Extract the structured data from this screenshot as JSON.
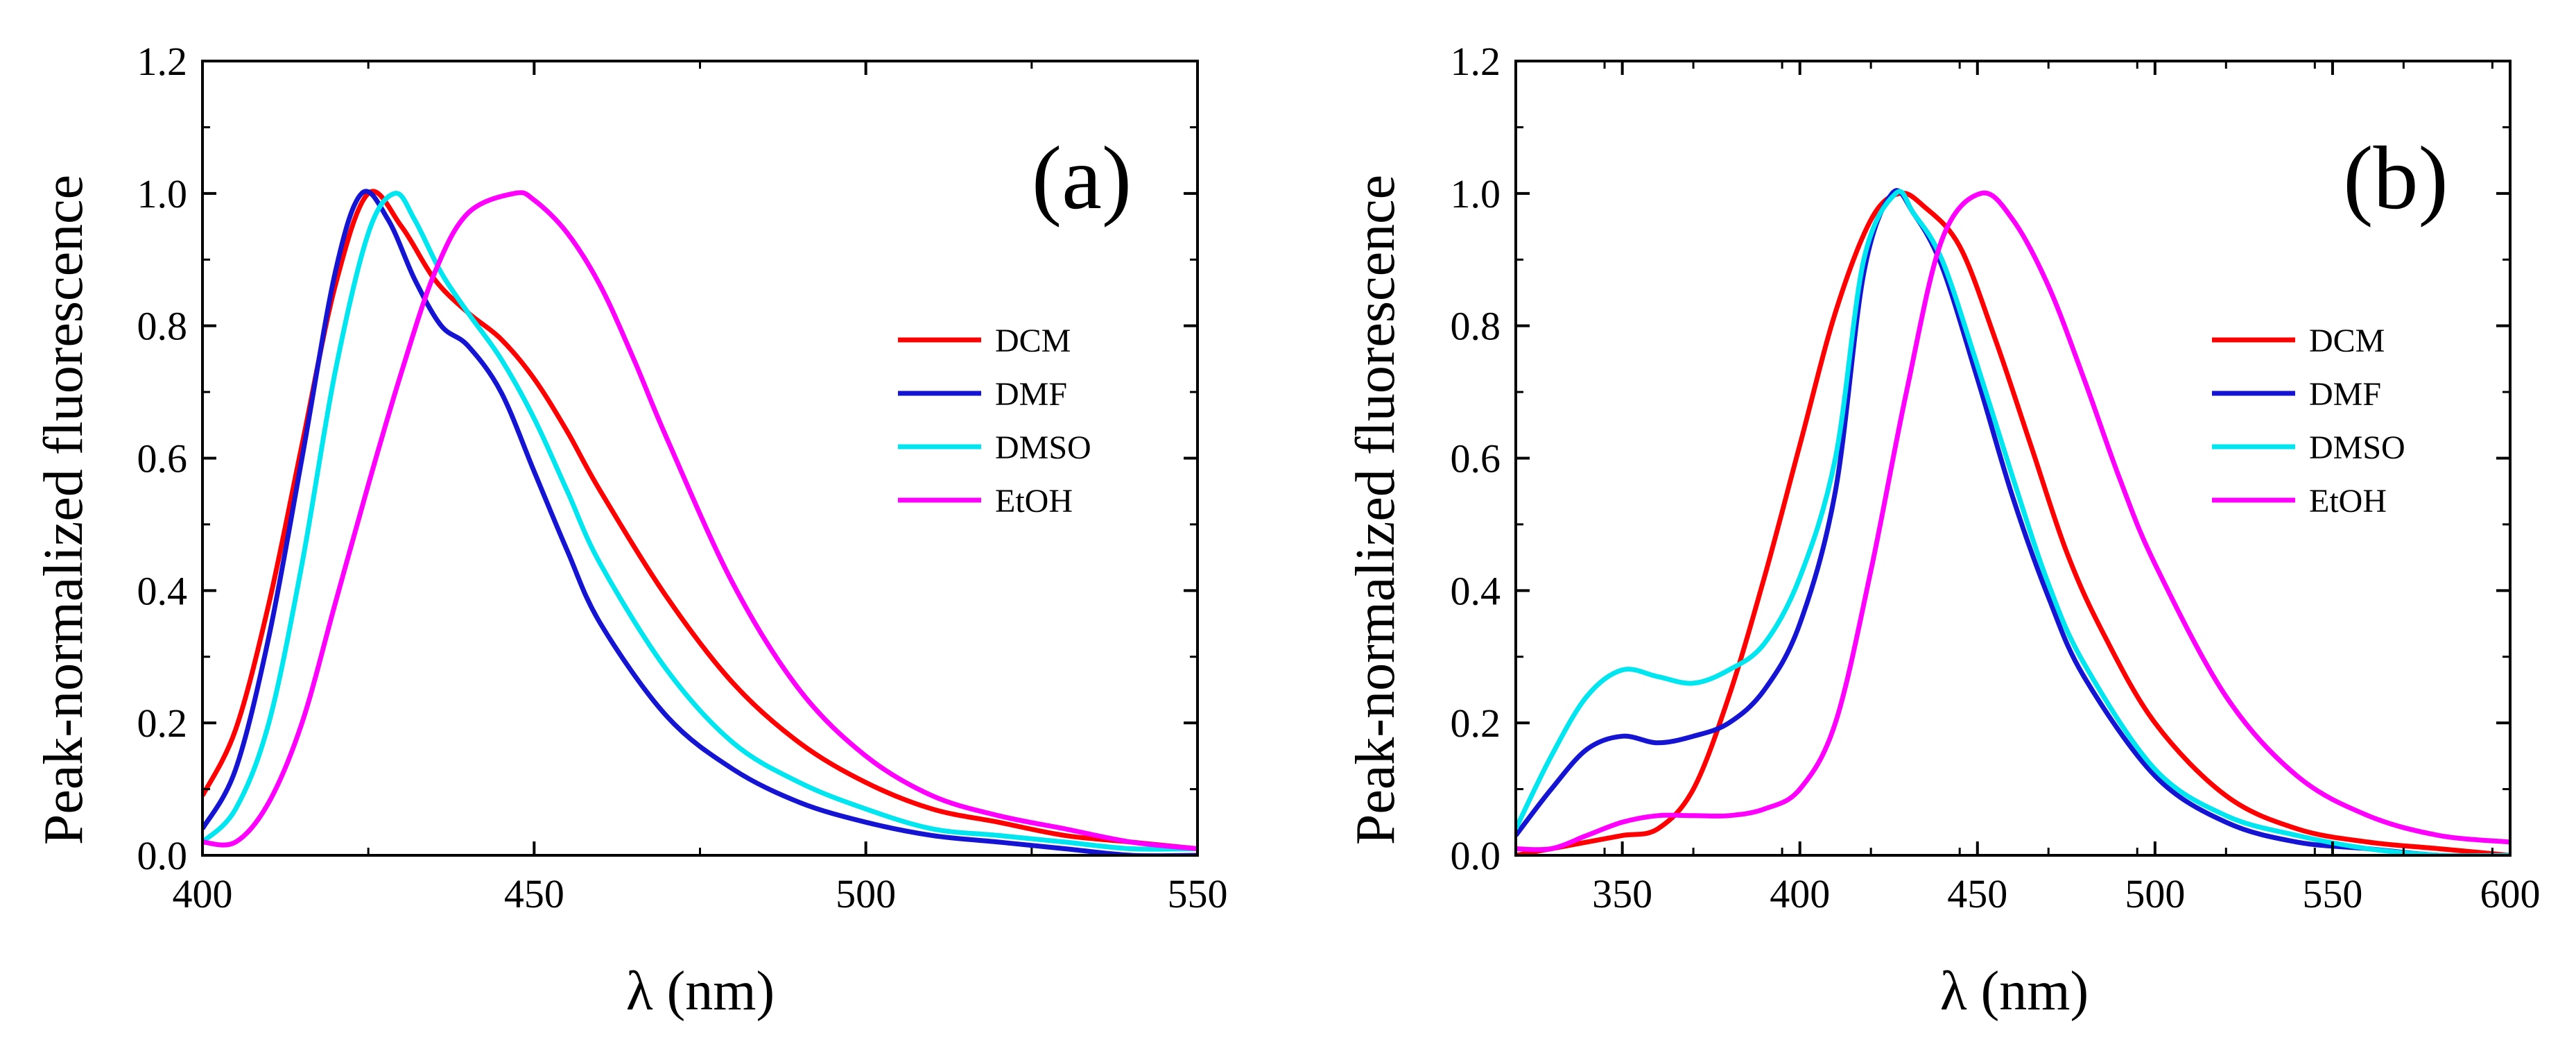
{
  "chart_data": [
    {
      "type": "line",
      "panel": "(a)",
      "xlabel": "λ (nm)",
      "ylabel": "Peak-normalized fluorescence",
      "xlim": [
        400,
        550
      ],
      "ylim": [
        0.0,
        1.2
      ],
      "x_ticks": [
        400,
        450,
        500,
        550
      ],
      "y_ticks": [
        0.0,
        0.2,
        0.4,
        0.6,
        0.8,
        1.0,
        1.2
      ],
      "x_tick_labels": [
        "400",
        "450",
        "500",
        "550"
      ],
      "y_tick_labels": [
        "0.0",
        "0.2",
        "0.4",
        "0.6",
        "0.8",
        "1.0",
        "1.2"
      ],
      "legend_position": "right",
      "series": [
        {
          "name": "DCM",
          "color": "#ff0000",
          "x": [
            400,
            405,
            410,
            415,
            420,
            425,
            430,
            435,
            440,
            445,
            450,
            455,
            460,
            470,
            480,
            490,
            500,
            510,
            520,
            530,
            540,
            550
          ],
          "y": [
            0.09,
            0.19,
            0.38,
            0.62,
            0.86,
            1.0,
            0.95,
            0.87,
            0.82,
            0.78,
            0.72,
            0.64,
            0.55,
            0.39,
            0.26,
            0.17,
            0.11,
            0.07,
            0.05,
            0.03,
            0.02,
            0.01
          ]
        },
        {
          "name": "DMF",
          "color": "#1414d2",
          "x": [
            400,
            405,
            410,
            415,
            420,
            424,
            428,
            432,
            436,
            440,
            445,
            450,
            455,
            460,
            470,
            480,
            490,
            500,
            510,
            520,
            530,
            540,
            550
          ],
          "y": [
            0.04,
            0.13,
            0.33,
            0.6,
            0.88,
            1.0,
            0.96,
            0.87,
            0.8,
            0.77,
            0.7,
            0.58,
            0.46,
            0.35,
            0.21,
            0.13,
            0.08,
            0.05,
            0.03,
            0.02,
            0.01,
            0.0,
            0.0
          ]
        },
        {
          "name": "DMSO",
          "color": "#00e6f0",
          "x": [
            400,
            405,
            410,
            415,
            420,
            425,
            429,
            432,
            436,
            440,
            445,
            450,
            455,
            460,
            470,
            480,
            490,
            500,
            510,
            520,
            530,
            540,
            550
          ],
          "y": [
            0.02,
            0.07,
            0.2,
            0.44,
            0.73,
            0.94,
            1.0,
            0.96,
            0.88,
            0.82,
            0.75,
            0.66,
            0.55,
            0.44,
            0.28,
            0.17,
            0.11,
            0.07,
            0.04,
            0.03,
            0.02,
            0.01,
            0.01
          ]
        },
        {
          "name": "EtOH",
          "color": "#ff00ff",
          "x": [
            400,
            405,
            410,
            415,
            420,
            425,
            430,
            435,
            440,
            447,
            450,
            455,
            460,
            465,
            470,
            480,
            490,
            500,
            510,
            520,
            530,
            540,
            550
          ],
          "y": [
            0.02,
            0.02,
            0.08,
            0.2,
            0.38,
            0.56,
            0.73,
            0.88,
            0.97,
            1.0,
            0.99,
            0.94,
            0.86,
            0.75,
            0.63,
            0.41,
            0.25,
            0.15,
            0.09,
            0.06,
            0.04,
            0.02,
            0.01
          ]
        }
      ]
    },
    {
      "type": "line",
      "panel": "(b)",
      "xlabel": "λ (nm)",
      "ylabel": "Peak-normalized fluorescence",
      "xlim": [
        320,
        600
      ],
      "ylim": [
        0.0,
        1.2
      ],
      "x_ticks": [
        350,
        400,
        450,
        500,
        550,
        600
      ],
      "y_ticks": [
        0.0,
        0.2,
        0.4,
        0.6,
        0.8,
        1.0,
        1.2
      ],
      "x_tick_labels": [
        "350",
        "400",
        "450",
        "500",
        "550",
        "600"
      ],
      "y_tick_labels": [
        "0.0",
        "0.2",
        "0.4",
        "0.6",
        "0.8",
        "1.0",
        "1.2"
      ],
      "legend_position": "right",
      "series": [
        {
          "name": "DCM",
          "color": "#ff0000",
          "x": [
            320,
            330,
            340,
            350,
            360,
            370,
            380,
            390,
            400,
            410,
            420,
            428,
            435,
            445,
            455,
            465,
            475,
            485,
            500,
            520,
            540,
            560,
            580,
            600
          ],
          "y": [
            0.0,
            0.01,
            0.02,
            0.03,
            0.04,
            0.1,
            0.24,
            0.42,
            0.62,
            0.82,
            0.96,
            1.0,
            0.98,
            0.92,
            0.78,
            0.62,
            0.46,
            0.34,
            0.2,
            0.09,
            0.04,
            0.02,
            0.01,
            0.0
          ]
        },
        {
          "name": "DMF",
          "color": "#1414d2",
          "x": [
            320,
            330,
            340,
            350,
            360,
            370,
            380,
            390,
            400,
            410,
            418,
            426,
            432,
            440,
            450,
            460,
            470,
            480,
            500,
            520,
            540,
            560,
            580,
            600
          ],
          "y": [
            0.03,
            0.1,
            0.16,
            0.18,
            0.17,
            0.18,
            0.2,
            0.25,
            0.35,
            0.55,
            0.88,
            1.0,
            0.97,
            0.89,
            0.72,
            0.54,
            0.39,
            0.27,
            0.12,
            0.05,
            0.02,
            0.01,
            0.0,
            0.0
          ]
        },
        {
          "name": "DMSO",
          "color": "#00e6f0",
          "x": [
            320,
            330,
            340,
            350,
            360,
            370,
            380,
            390,
            400,
            410,
            418,
            427,
            432,
            440,
            450,
            460,
            470,
            480,
            500,
            520,
            540,
            560,
            580,
            600
          ],
          "y": [
            0.04,
            0.15,
            0.24,
            0.28,
            0.27,
            0.26,
            0.28,
            0.32,
            0.42,
            0.6,
            0.9,
            1.0,
            0.97,
            0.9,
            0.74,
            0.57,
            0.41,
            0.29,
            0.13,
            0.06,
            0.03,
            0.01,
            0.0,
            0.0
          ]
        },
        {
          "name": "EtOH",
          "color": "#ff00ff",
          "x": [
            320,
            330,
            340,
            350,
            360,
            370,
            380,
            390,
            400,
            410,
            420,
            430,
            440,
            451,
            460,
            470,
            480,
            490,
            500,
            520,
            540,
            560,
            580,
            600
          ],
          "y": [
            0.01,
            0.01,
            0.03,
            0.05,
            0.06,
            0.06,
            0.06,
            0.07,
            0.1,
            0.2,
            0.43,
            0.7,
            0.93,
            1.0,
            0.96,
            0.86,
            0.72,
            0.57,
            0.44,
            0.24,
            0.12,
            0.06,
            0.03,
            0.02
          ]
        }
      ]
    }
  ]
}
